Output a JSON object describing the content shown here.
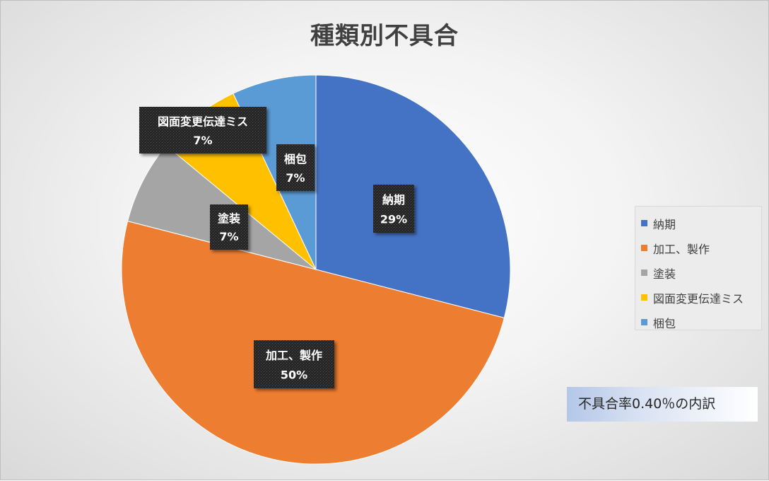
{
  "chart_data": {
    "type": "pie",
    "title": "種類別不具合",
    "categories": [
      "納期",
      "加工、製作",
      "塗装",
      "図面変更伝達ミス",
      "梱包"
    ],
    "values": [
      29,
      50,
      7,
      7,
      7
    ],
    "value_labels": [
      "29%",
      "50%",
      "7%",
      "7%",
      "7%"
    ],
    "colors": [
      "#4472c4",
      "#ed7d31",
      "#a5a5a5",
      "#ffc000",
      "#5b9bd5"
    ],
    "legend_position": "right",
    "start_angle": "top, clockwise"
  },
  "legend": {
    "items": [
      {
        "label": "納期",
        "color": "#4472c4"
      },
      {
        "label": "加工、製作",
        "color": "#ed7d31"
      },
      {
        "label": "塗装",
        "color": "#a5a5a5"
      },
      {
        "label": "図面変更伝達ミス",
        "color": "#ffc000"
      },
      {
        "label": "梱包",
        "color": "#5b9bd5"
      }
    ]
  },
  "note": "不具合率0.40％の内訳"
}
